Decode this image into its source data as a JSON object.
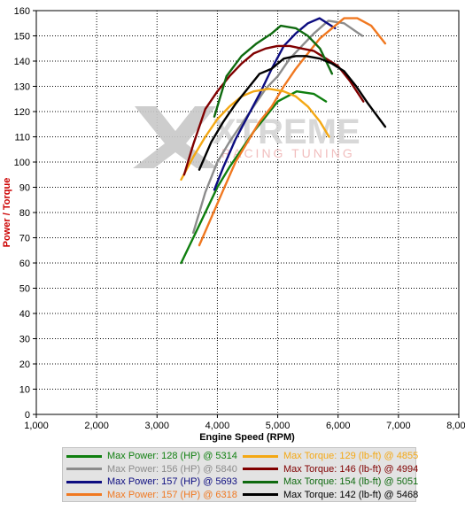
{
  "chart_data": {
    "type": "line",
    "xlabel": "Engine Speed (RPM)",
    "ylabel": "Power / Torque",
    "xlim": [
      1000,
      8000
    ],
    "ylim": [
      0,
      160
    ],
    "xticks": [
      1000,
      2000,
      3000,
      4000,
      5000,
      6000,
      7000,
      8000
    ],
    "xtick_labels": [
      "1,000",
      "2,000",
      "3,000",
      "4,000",
      "5,000",
      "6,000",
      "7,000",
      "8,000"
    ],
    "yticks": [
      0,
      10,
      20,
      30,
      40,
      50,
      60,
      70,
      80,
      90,
      100,
      110,
      120,
      130,
      140,
      150,
      160
    ],
    "grid": true,
    "watermark": {
      "main": "XTREME",
      "sub": "RACING TUNING"
    },
    "series": [
      {
        "name": "Max Power: 128 (HP) @ 5314",
        "color": "#0f7f0f",
        "x": [
          3400,
          3600,
          3800,
          4000,
          4200,
          4400,
          4600,
          4800,
          5000,
          5314,
          5600,
          5800
        ],
        "y": [
          60,
          70,
          80,
          90,
          98,
          105,
          112,
          118,
          124,
          128,
          127,
          124
        ]
      },
      {
        "name": "Max Power: 156 (HP) @ 5840",
        "color": "#8c8c8c",
        "x": [
          3600,
          3800,
          4000,
          4200,
          4400,
          4600,
          4800,
          5000,
          5200,
          5400,
          5600,
          5840,
          6100,
          6400
        ],
        "y": [
          72,
          88,
          100,
          108,
          115,
          122,
          129,
          134,
          141,
          146,
          151,
          156,
          155,
          150
        ]
      },
      {
        "name": "Max Power: 157 (HP) @ 5693",
        "color": "#0c0c80",
        "x": [
          3950,
          4100,
          4300,
          4500,
          4700,
          4900,
          5100,
          5300,
          5500,
          5693,
          5950
        ],
        "y": [
          89,
          98,
          109,
          118,
          127,
          137,
          146,
          151,
          155,
          157,
          153
        ]
      },
      {
        "name": "Max Power: 157 (HP) @ 6318",
        "color": "#f07820",
        "x": [
          3700,
          3900,
          4100,
          4300,
          4500,
          4700,
          4900,
          5100,
          5300,
          5500,
          5700,
          5900,
          6100,
          6318,
          6550,
          6780
        ],
        "y": [
          67,
          78,
          89,
          100,
          108,
          116,
          122,
          130,
          137,
          143,
          149,
          153,
          157,
          157,
          154,
          147
        ]
      },
      {
        "name": "Max Torque: 129 (lb-ft) @ 4855",
        "color": "#f4a814",
        "x": [
          3400,
          3600,
          3800,
          4000,
          4200,
          4400,
          4600,
          4855,
          5100,
          5300,
          5500,
          5700,
          5850
        ],
        "y": [
          93,
          102,
          110,
          117,
          122,
          126,
          128,
          129,
          128,
          126,
          122,
          116,
          110
        ]
      },
      {
        "name": "Max Torque: 146 (lb-ft) @ 4994",
        "color": "#800000",
        "x": [
          3450,
          3600,
          3800,
          4000,
          4200,
          4400,
          4600,
          4800,
          4994,
          5200,
          5400,
          5600,
          5800,
          6000,
          6200,
          6420
        ],
        "y": [
          95,
          107,
          121,
          128,
          134,
          139,
          143,
          145,
          146,
          146,
          145,
          144,
          141,
          138,
          132,
          124
        ]
      },
      {
        "name": "Max Torque: 154 (lb-ft) @ 5051",
        "color": "#0f6a0f",
        "x": [
          3950,
          4150,
          4400,
          4650,
          4900,
          5051,
          5300,
          5500,
          5700,
          5900
        ],
        "y": [
          118,
          134,
          142,
          147,
          151,
          154,
          153,
          150,
          145,
          135
        ]
      },
      {
        "name": "Max Torque: 142 (lb-ft) @ 5468",
        "color": "#000000",
        "x": [
          3700,
          3900,
          4100,
          4300,
          4500,
          4700,
          4900,
          5100,
          5300,
          5468,
          5700,
          5900,
          6100,
          6300,
          6500,
          6780
        ],
        "y": [
          97,
          108,
          116,
          123,
          129,
          135,
          137,
          141,
          142,
          142,
          141,
          139,
          136,
          130,
          123,
          114
        ]
      }
    ]
  }
}
